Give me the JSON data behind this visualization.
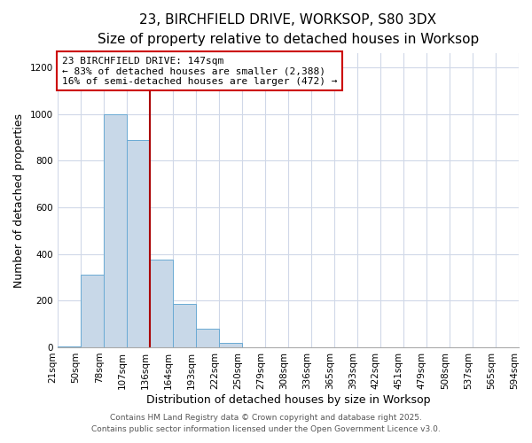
{
  "title": "23, BIRCHFIELD DRIVE, WORKSOP, S80 3DX",
  "subtitle": "Size of property relative to detached houses in Worksop",
  "xlabel": "Distribution of detached houses by size in Worksop",
  "ylabel": "Number of detached properties",
  "bar_values": [
    5,
    310,
    1000,
    890,
    375,
    185,
    80,
    20,
    0,
    0,
    0,
    0,
    0,
    0,
    0,
    0,
    0,
    0,
    0,
    0
  ],
  "bin_labels": [
    "21sqm",
    "50sqm",
    "78sqm",
    "107sqm",
    "136sqm",
    "164sqm",
    "193sqm",
    "222sqm",
    "250sqm",
    "279sqm",
    "308sqm",
    "336sqm",
    "365sqm",
    "393sqm",
    "422sqm",
    "451sqm",
    "479sqm",
    "508sqm",
    "537sqm",
    "565sqm",
    "594sqm"
  ],
  "bar_color": "#c8d8e8",
  "bar_edge_color": "#6aaad4",
  "vline_color": "#aa0000",
  "annotation_box_text": "23 BIRCHFIELD DRIVE: 147sqm\n← 83% of detached houses are smaller (2,388)\n16% of semi-detached houses are larger (472) →",
  "annotation_box_edge_color": "#cc0000",
  "annotation_box_fill": "#ffffff",
  "ylim": [
    0,
    1260
  ],
  "yticks": [
    0,
    200,
    400,
    600,
    800,
    1000,
    1200
  ],
  "footer1": "Contains HM Land Registry data © Crown copyright and database right 2025.",
  "footer2": "Contains public sector information licensed under the Open Government Licence v3.0.",
  "bg_color": "#ffffff",
  "grid_color": "#d0d8e8",
  "title_fontsize": 11,
  "subtitle_fontsize": 10,
  "xlabel_fontsize": 9,
  "ylabel_fontsize": 9,
  "tick_fontsize": 7.5,
  "annotation_fontsize": 8,
  "footer_fontsize": 6.5
}
